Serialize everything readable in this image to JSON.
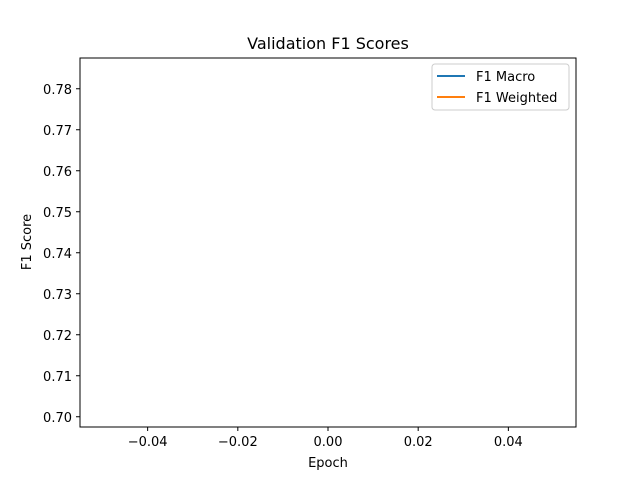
{
  "chart_data": {
    "type": "line",
    "title": "Validation F1 Scores",
    "xlabel": "Epoch",
    "ylabel": "F1 Score",
    "xlim": [
      -0.055,
      0.055
    ],
    "ylim": [
      0.6975,
      0.7875
    ],
    "xticks": [
      -0.04,
      -0.02,
      0.0,
      0.02,
      0.04
    ],
    "xtick_labels": [
      "−0.04",
      "−0.02",
      "0.00",
      "0.02",
      "0.04"
    ],
    "yticks": [
      0.7,
      0.71,
      0.72,
      0.73,
      0.74,
      0.75,
      0.76,
      0.77,
      0.78
    ],
    "ytick_labels": [
      "0.70",
      "0.71",
      "0.72",
      "0.73",
      "0.74",
      "0.75",
      "0.76",
      "0.77",
      "0.78"
    ],
    "grid": false,
    "legend_position": "upper right",
    "series": [
      {
        "name": "F1 Macro",
        "color": "#1f77b4",
        "x": [],
        "y": []
      },
      {
        "name": "F1 Weighted",
        "color": "#ff7f0e",
        "x": [],
        "y": []
      }
    ]
  }
}
